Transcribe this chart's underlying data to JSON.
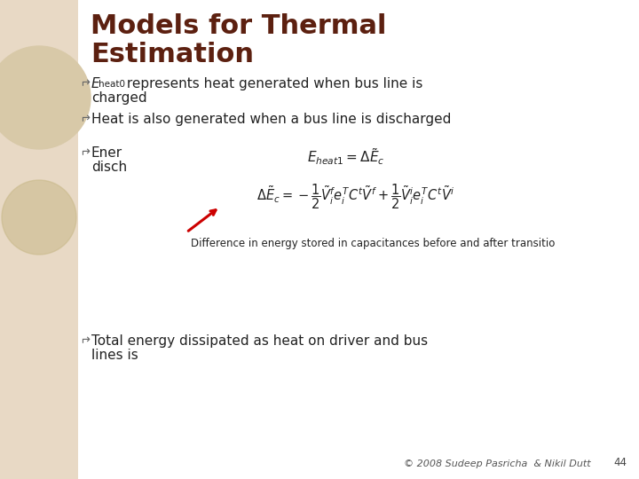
{
  "bg_color": "#ffffff",
  "left_panel_color": "#e8d9c5",
  "title_line1": "Models for Thermal",
  "title_line2": "Estimation",
  "title_color": "#5c2010",
  "title_fontsize": 22,
  "bullet_color": "#222222",
  "bullet_fontsize": 11,
  "bullet_sym_color": "#666666",
  "bullet2": "Heat is also generated when a bus line is discharged",
  "annotation": "Difference in energy stored in capacitances before and after transitio",
  "footer": "© 2008 Sudeep Pasricha  & Nikil Dutt",
  "page_num": "44",
  "arrow_color": "#cc0000",
  "circle1_color": "#d8c9a8",
  "circle2_color": "#c8b888"
}
